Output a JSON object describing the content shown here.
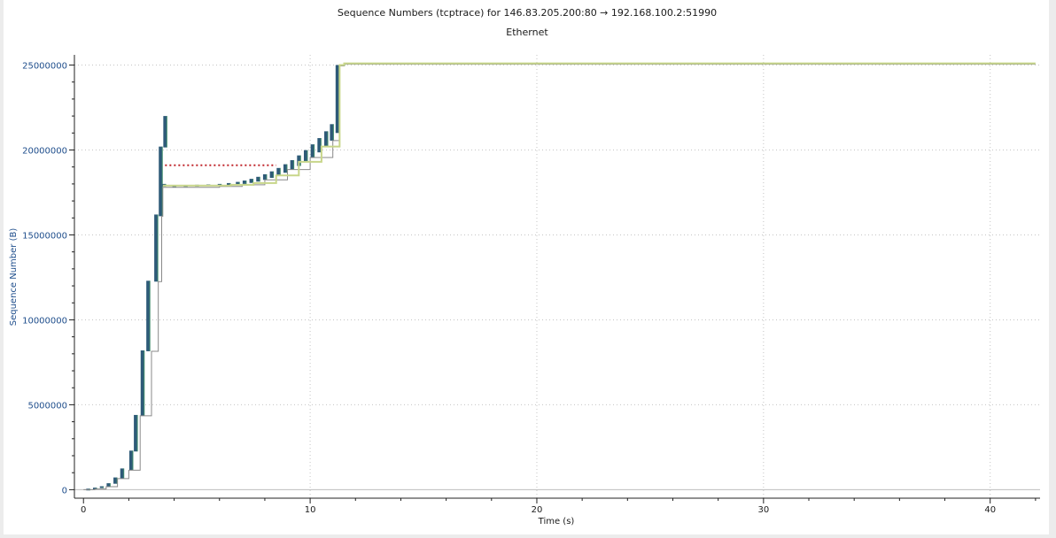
{
  "chart_data": {
    "type": "line",
    "title": "Sequence Numbers (tcptrace) for 146.83.205.200:80 → 192.168.100.2:51990",
    "subtitle": "Ethernet",
    "xlabel": "Time (s)",
    "ylabel": "Sequence Number (B)",
    "xlim": [
      -0.4,
      42.2
    ],
    "ylim": [
      -500000,
      25600000
    ],
    "x_ticks": [
      0,
      10,
      20,
      30,
      40
    ],
    "y_ticks": [
      0,
      5000000,
      10000000,
      15000000,
      20000000,
      25000000
    ],
    "x_tick_labels": [
      "0",
      "10",
      "20",
      "30",
      "40"
    ],
    "y_tick_labels": [
      "0",
      "5000000",
      "10000000",
      "15000000",
      "20000000",
      "25000000"
    ],
    "grid": true,
    "colors": {
      "segments": "#2e5a78",
      "segments_edge": "#3f8a6a",
      "ack": "#8a8a8a",
      "rwin": "#c8d68a",
      "dup_ack": "#c0262c"
    },
    "series": [
      {
        "key": "segments",
        "style": "segment-stack",
        "points": [
          [
            0.2,
            0,
            60000
          ],
          [
            0.5,
            40000,
            120000
          ],
          [
            0.8,
            100000,
            200000
          ],
          [
            1.1,
            180000,
            380000
          ],
          [
            1.4,
            350000,
            720000
          ],
          [
            1.7,
            650000,
            1250000
          ],
          [
            2.1,
            1150000,
            2300000
          ],
          [
            2.3,
            2250000,
            4400000
          ],
          [
            2.6,
            4350000,
            8200000
          ],
          [
            2.85,
            8150000,
            12300000
          ],
          [
            3.2,
            12250000,
            16200000
          ],
          [
            3.4,
            16100000,
            20200000
          ],
          [
            3.6,
            20150000,
            22000000
          ],
          [
            3.55,
            17850000,
            18000000
          ],
          [
            4.0,
            17860000,
            17920000
          ],
          [
            4.5,
            17870000,
            17930000
          ],
          [
            5.0,
            17880000,
            17950000
          ],
          [
            5.5,
            17890000,
            17970000
          ],
          [
            6.0,
            17900000,
            18000000
          ],
          [
            6.4,
            17920000,
            18050000
          ],
          [
            6.8,
            17950000,
            18120000
          ],
          [
            7.1,
            18000000,
            18200000
          ],
          [
            7.4,
            18060000,
            18300000
          ],
          [
            7.7,
            18140000,
            18420000
          ],
          [
            8.0,
            18240000,
            18570000
          ],
          [
            8.3,
            18360000,
            18740000
          ],
          [
            8.6,
            18500000,
            18940000
          ],
          [
            8.9,
            18660000,
            19160000
          ],
          [
            9.2,
            18850000,
            19400000
          ],
          [
            9.5,
            19060000,
            19680000
          ],
          [
            9.8,
            19300000,
            19990000
          ],
          [
            10.1,
            19560000,
            20330000
          ],
          [
            10.4,
            19860000,
            20700000
          ],
          [
            10.7,
            20180000,
            21100000
          ],
          [
            10.95,
            20550000,
            21520000
          ],
          [
            11.2,
            21000000,
            25000000
          ],
          [
            11.45,
            24950000,
            25050000
          ]
        ]
      },
      {
        "key": "ack",
        "style": "step",
        "points": [
          [
            0,
            0
          ],
          [
            0.5,
            40000
          ],
          [
            1.0,
            180000
          ],
          [
            1.5,
            650000
          ],
          [
            2.0,
            1150000
          ],
          [
            2.5,
            4350000
          ],
          [
            3.0,
            8150000
          ],
          [
            3.3,
            12250000
          ],
          [
            3.45,
            16100000
          ],
          [
            3.5,
            17800000
          ],
          [
            6.0,
            17850000
          ],
          [
            7.0,
            17950000
          ],
          [
            8.0,
            18240000
          ],
          [
            9.0,
            18850000
          ],
          [
            10.0,
            19560000
          ],
          [
            11.0,
            20550000
          ],
          [
            11.3,
            24950000
          ],
          [
            11.5,
            25050000
          ],
          [
            42.0,
            25050000
          ]
        ]
      },
      {
        "key": "rwin",
        "style": "step",
        "points": [
          [
            3.5,
            17900000
          ],
          [
            6.5,
            17950000
          ],
          [
            7.5,
            18050000
          ],
          [
            8.5,
            18500000
          ],
          [
            9.5,
            19300000
          ],
          [
            10.5,
            20200000
          ],
          [
            11.3,
            25000000
          ],
          [
            11.5,
            25100000
          ],
          [
            42.0,
            25100000
          ]
        ]
      },
      {
        "key": "dup_ack",
        "style": "dotted",
        "points": [
          [
            3.6,
            19100000
          ],
          [
            8.5,
            19100000
          ]
        ]
      }
    ]
  }
}
